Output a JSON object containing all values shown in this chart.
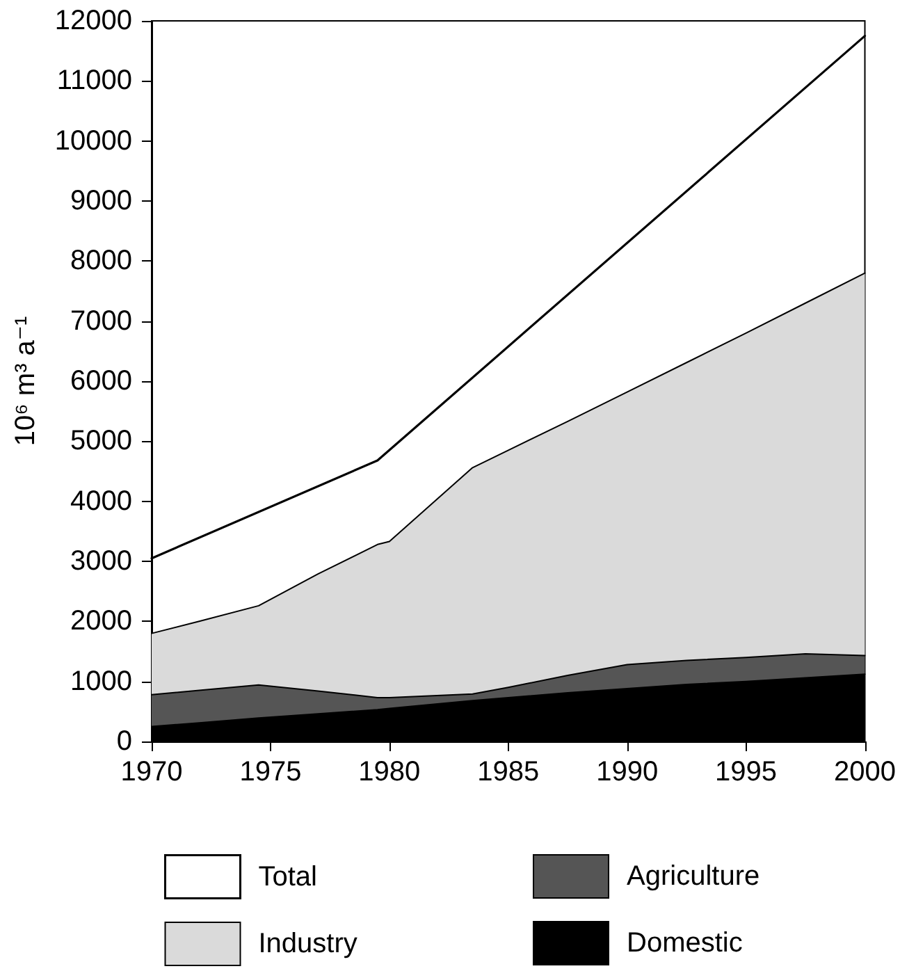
{
  "chart_data": {
    "type": "area",
    "stacked": true,
    "ylabel": "10⁶ m³ a⁻¹",
    "x": [
      1970,
      1972,
      1974.5,
      1977,
      1979.5,
      1980,
      1983.5,
      1985,
      1987.5,
      1990,
      1992.5,
      1995,
      1997.5,
      2000
    ],
    "series": [
      {
        "name": "Domestic",
        "color": "#000000",
        "values": [
          250,
          310,
          390,
          460,
          530,
          550,
          680,
          730,
          810,
          880,
          950,
          1000,
          1060,
          1120
        ]
      },
      {
        "name": "Agriculture",
        "color": "#555555",
        "values": [
          530,
          540,
          550,
          380,
          200,
          180,
          110,
          170,
          290,
          400,
          400,
          400,
          400,
          310
        ]
      },
      {
        "name": "Industry",
        "color": "#dadada",
        "values": [
          1020,
          1150,
          1320,
          1950,
          2550,
          2600,
          3770,
          3950,
          4230,
          4540,
          4960,
          5400,
          5840,
          6370
        ]
      },
      {
        "name": "Total",
        "type": "line",
        "color": "#000000",
        "x": [
          1970,
          1979.5,
          2000
        ],
        "values": [
          3050,
          4680,
          11750
        ]
      }
    ],
    "xlim": [
      1970,
      2000
    ],
    "xticks": [
      1970,
      1975,
      1980,
      1985,
      1990,
      1995,
      2000
    ],
    "ylim": [
      0,
      12000
    ],
    "yticks": [
      0,
      1000,
      2000,
      3000,
      4000,
      5000,
      6000,
      7000,
      8000,
      9000,
      10000,
      11000,
      12000
    ],
    "legend": "bottom",
    "marker": "none"
  }
}
